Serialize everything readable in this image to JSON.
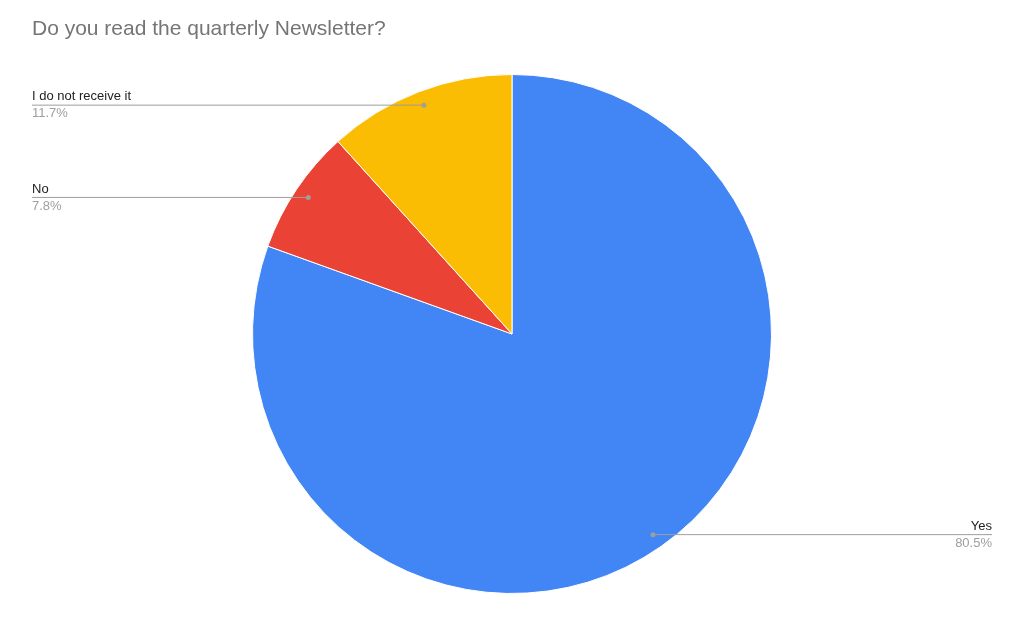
{
  "chart_data": {
    "type": "pie",
    "title": "Do you read the quarterly Newsletter?",
    "categories": [
      "Yes",
      "No",
      "I do not receive it"
    ],
    "values": [
      80.5,
      7.8,
      11.7
    ],
    "colors": [
      "#4285f4",
      "#ea4335",
      "#fbbc04"
    ],
    "value_labels": [
      "80.5%",
      "7.8%",
      "11.7%"
    ],
    "legend": false
  }
}
